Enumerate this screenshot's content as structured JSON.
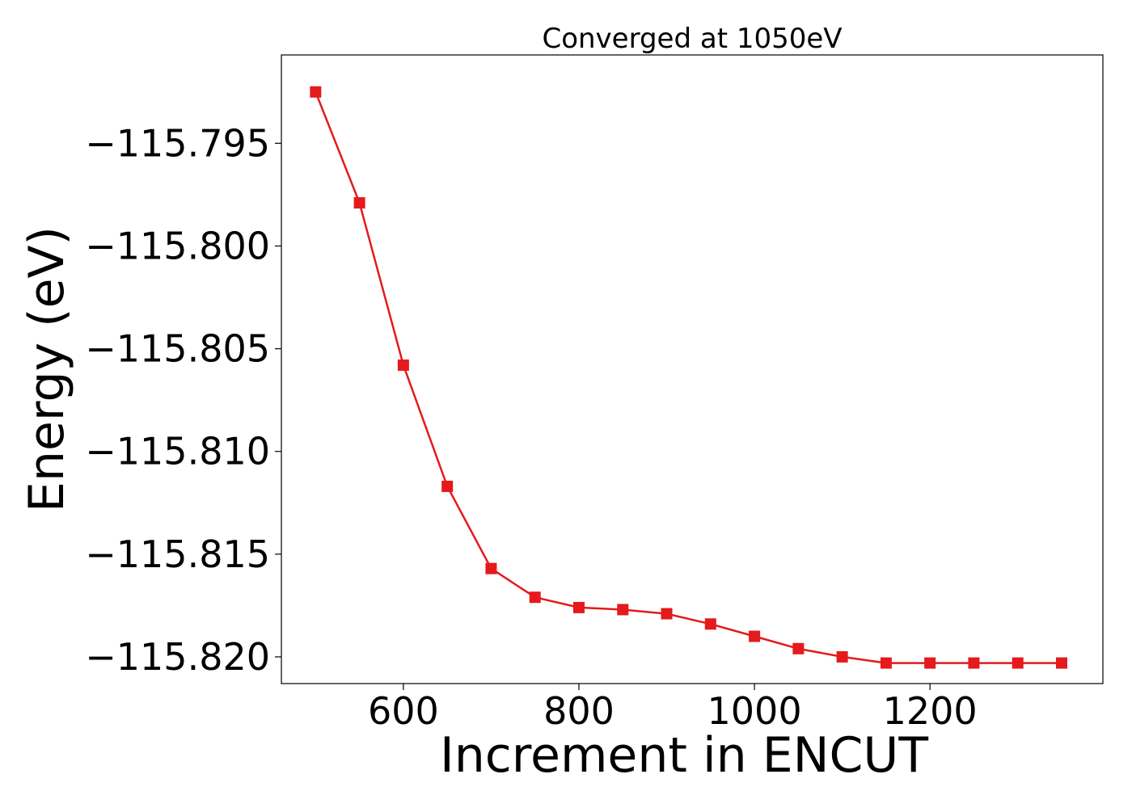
{
  "chart_data": {
    "type": "line",
    "title": "Converged at 1050eV",
    "xlabel": "Increment in ENCUT",
    "ylabel": "Energy (eV)",
    "xlim": [
      461,
      1397
    ],
    "ylim": [
      -115.8213,
      -115.7907
    ],
    "xticks": [
      600,
      800,
      1000,
      1200
    ],
    "xtick_labels": [
      "600",
      "800",
      "1000",
      "1200"
    ],
    "yticks": [
      -115.795,
      -115.8,
      -115.805,
      -115.81,
      -115.815,
      -115.82
    ],
    "ytick_labels": [
      "−115.795",
      "−115.800",
      "−115.805",
      "−115.810",
      "−115.815",
      "−115.820"
    ],
    "grid": false,
    "series": [
      {
        "color": "#e41a1c",
        "marker": "square",
        "x": [
          500,
          550,
          600,
          650,
          700,
          750,
          800,
          850,
          900,
          950,
          1000,
          1050,
          1100,
          1150,
          1200,
          1250,
          1300,
          1350
        ],
        "y": [
          -115.7925,
          -115.7979,
          -115.8058,
          -115.8117,
          -115.8157,
          -115.8171,
          -115.8176,
          -115.8177,
          -115.8179,
          -115.8184,
          -115.819,
          -115.8196,
          -115.82,
          -115.8203,
          -115.8203,
          -115.8203,
          -115.8203,
          -115.8203
        ]
      }
    ]
  }
}
